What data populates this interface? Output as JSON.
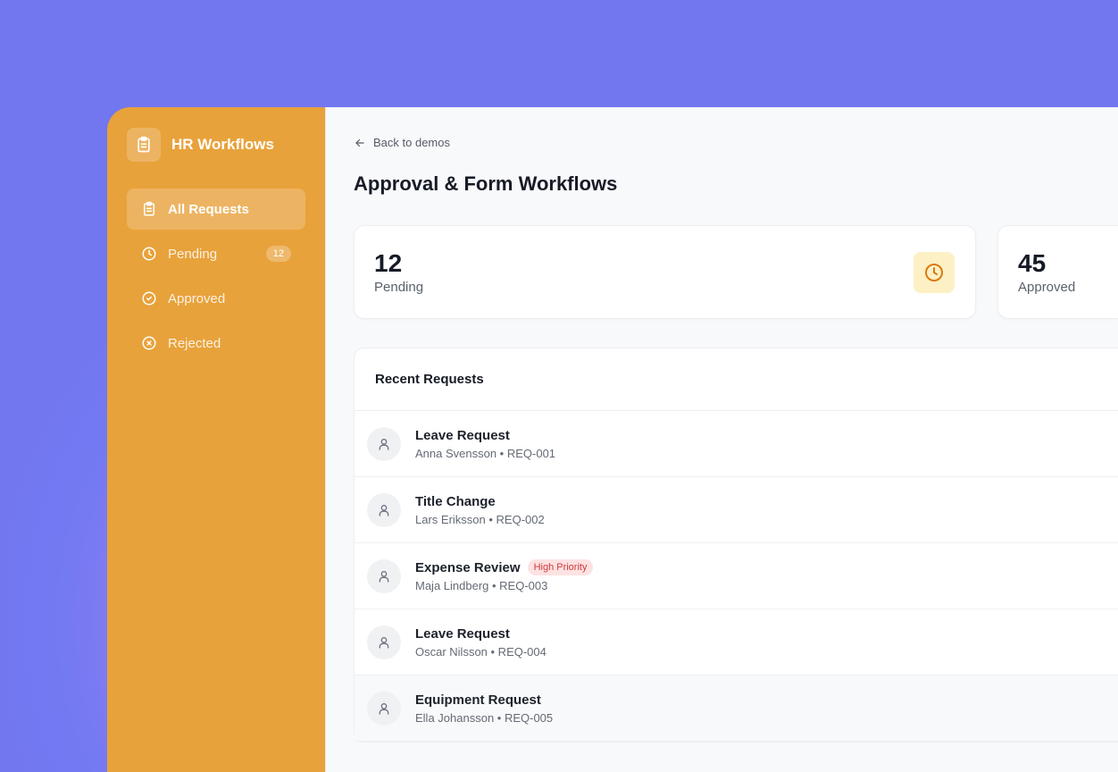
{
  "sidebar": {
    "brand": "HR Workflows",
    "items": [
      {
        "label": "All Requests",
        "icon": "clipboard-icon",
        "active": true
      },
      {
        "label": "Pending",
        "icon": "clock-icon",
        "badge": "12"
      },
      {
        "label": "Approved",
        "icon": "check-circle-icon"
      },
      {
        "label": "Rejected",
        "icon": "x-circle-icon"
      }
    ]
  },
  "header": {
    "back": "Back to demos",
    "title": "Approval & Form Workflows"
  },
  "stats": [
    {
      "value": "12",
      "label": "Pending"
    },
    {
      "value": "45",
      "label": "Approved"
    }
  ],
  "requests": {
    "title": "Recent Requests",
    "rows": [
      {
        "title": "Leave Request",
        "sub": "Anna Svensson • REQ-001"
      },
      {
        "title": "Title Change",
        "sub": "Lars Eriksson • REQ-002"
      },
      {
        "title": "Expense Review",
        "sub": "Maja Lindberg • REQ-003",
        "tag": "High Priority"
      },
      {
        "title": "Leave Request",
        "sub": "Oscar Nilsson • REQ-004"
      },
      {
        "title": "Equipment Request",
        "sub": "Ella Johansson • REQ-005"
      }
    ]
  },
  "colors": {
    "background": "#7277ef",
    "sidebar": "#e8a23b",
    "priority": "#d03a3a"
  }
}
